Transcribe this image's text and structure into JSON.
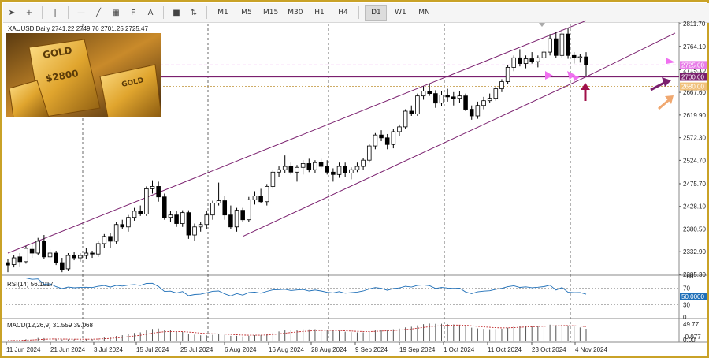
{
  "toolbar": {
    "tools": [
      {
        "name": "cursor-icon",
        "glyph": "➤"
      },
      {
        "name": "crosshair-icon",
        "glyph": "+"
      },
      {
        "name": "vertical-line-icon",
        "glyph": "|"
      },
      {
        "name": "horizontal-line-icon",
        "glyph": "—"
      },
      {
        "name": "trendline-icon",
        "glyph": "╱"
      },
      {
        "name": "channel-icon",
        "glyph": "▦"
      },
      {
        "name": "fibonacci-icon",
        "glyph": "F"
      },
      {
        "name": "text-icon",
        "glyph": "A"
      },
      {
        "name": "rectangle-icon",
        "glyph": "■"
      },
      {
        "name": "arrows-icon",
        "glyph": "⇅"
      }
    ],
    "timeframes": [
      {
        "label": "M1",
        "active": false
      },
      {
        "label": "M5",
        "active": false
      },
      {
        "label": "M15",
        "active": false
      },
      {
        "label": "M30",
        "active": false
      },
      {
        "label": "H1",
        "active": false
      },
      {
        "label": "H4",
        "active": false
      },
      {
        "label": "D1",
        "active": true
      },
      {
        "label": "W1",
        "active": false
      },
      {
        "label": "MN",
        "active": false
      }
    ]
  },
  "chart_data": {
    "type": "candlestick",
    "symbol_header": "XAUUSD,Daily  2741.22 2749.76 2701.25 2725.47",
    "price_axis": {
      "range": [
        2285.3,
        2811.7
      ],
      "ticks": [
        "2811.70",
        "2764.10",
        "2715.10",
        "2667.60",
        "2619.90",
        "2572.30",
        "2524.70",
        "2475.70",
        "2428.10",
        "2380.50",
        "2332.90",
        "2285.30"
      ]
    },
    "date_axis": [
      "11 Jun 2024",
      "21 Jun 2024",
      "3 Jul 2024",
      "15 Jul 2024",
      "25 Jul 2024",
      "6 Aug 2024",
      "16 Aug 2024",
      "28 Aug 2024",
      "9 Sep 2024",
      "19 Sep 2024",
      "1 Oct 2024",
      "11 Oct 2024",
      "23 Oct 2024",
      "4 Nov 2024"
    ],
    "price_labels": [
      {
        "text": "2725.00",
        "value": 2725.0,
        "bg": "#e87de8"
      },
      {
        "text": "2700.00",
        "value": 2700.0,
        "bg": "#7a1f6e"
      },
      {
        "text": "2680.00",
        "value": 2680.0,
        "bg": "#f0c07a"
      }
    ],
    "level_lines": [
      2725.0,
      2700.0,
      2680.0
    ],
    "channel": {
      "upper": [
        [
          "11 Jun 2024",
          2330
        ],
        [
          "4 Nov 2024",
          2818
        ]
      ],
      "lower": [
        [
          "6 Aug 2024",
          2365
        ],
        [
          "4 Nov 2024",
          2700
        ]
      ],
      "far": [
        [
          "4 Nov 2024",
          2700
        ],
        [
          "8 Nov 2024",
          2780
        ]
      ]
    },
    "ohlc": [
      [
        2310,
        2318,
        2290,
        2305
      ],
      [
        2306,
        2325,
        2300,
        2320
      ],
      [
        2322,
        2330,
        2302,
        2312
      ],
      [
        2312,
        2345,
        2308,
        2340
      ],
      [
        2338,
        2348,
        2320,
        2330
      ],
      [
        2330,
        2362,
        2325,
        2355
      ],
      [
        2355,
        2368,
        2318,
        2322
      ],
      [
        2322,
        2338,
        2312,
        2330
      ],
      [
        2330,
        2335,
        2305,
        2310
      ],
      [
        2310,
        2320,
        2290,
        2295
      ],
      [
        2297,
        2330,
        2292,
        2325
      ],
      [
        2325,
        2332,
        2315,
        2320
      ],
      [
        2320,
        2330,
        2312,
        2325
      ],
      [
        2325,
        2340,
        2318,
        2330
      ],
      [
        2330,
        2335,
        2320,
        2328
      ],
      [
        2328,
        2355,
        2322,
        2350
      ],
      [
        2350,
        2370,
        2340,
        2365
      ],
      [
        2365,
        2372,
        2340,
        2355
      ],
      [
        2355,
        2395,
        2350,
        2390
      ],
      [
        2390,
        2400,
        2380,
        2385
      ],
      [
        2385,
        2410,
        2375,
        2405
      ],
      [
        2405,
        2425,
        2398,
        2418
      ],
      [
        2418,
        2430,
        2408,
        2412
      ],
      [
        2412,
        2470,
        2408,
        2465
      ],
      [
        2465,
        2483,
        2455,
        2470
      ],
      [
        2470,
        2480,
        2438,
        2448
      ],
      [
        2448,
        2455,
        2400,
        2405
      ],
      [
        2405,
        2418,
        2395,
        2410
      ],
      [
        2410,
        2418,
        2385,
        2392
      ],
      [
        2392,
        2420,
        2385,
        2415
      ],
      [
        2415,
        2420,
        2360,
        2368
      ],
      [
        2368,
        2392,
        2355,
        2385
      ],
      [
        2385,
        2395,
        2375,
        2390
      ],
      [
        2390,
        2418,
        2380,
        2410
      ],
      [
        2410,
        2440,
        2400,
        2435
      ],
      [
        2435,
        2478,
        2430,
        2440
      ],
      [
        2440,
        2450,
        2400,
        2410
      ],
      [
        2410,
        2430,
        2380,
        2385
      ],
      [
        2385,
        2425,
        2375,
        2420
      ],
      [
        2420,
        2425,
        2395,
        2400
      ],
      [
        2400,
        2448,
        2395,
        2442
      ],
      [
        2442,
        2460,
        2432,
        2450
      ],
      [
        2450,
        2465,
        2435,
        2438
      ],
      [
        2438,
        2475,
        2430,
        2470
      ],
      [
        2470,
        2505,
        2465,
        2500
      ],
      [
        2500,
        2512,
        2490,
        2505
      ],
      [
        2505,
        2535,
        2498,
        2512
      ],
      [
        2512,
        2520,
        2495,
        2500
      ],
      [
        2500,
        2515,
        2480,
        2510
      ],
      [
        2510,
        2525,
        2495,
        2518
      ],
      [
        2518,
        2528,
        2500,
        2505
      ],
      [
        2505,
        2525,
        2498,
        2520
      ],
      [
        2520,
        2528,
        2508,
        2512
      ],
      [
        2512,
        2525,
        2495,
        2500
      ],
      [
        2500,
        2508,
        2480,
        2495
      ],
      [
        2495,
        2520,
        2488,
        2512
      ],
      [
        2512,
        2520,
        2490,
        2498
      ],
      [
        2498,
        2510,
        2485,
        2505
      ],
      [
        2505,
        2520,
        2500,
        2512
      ],
      [
        2512,
        2530,
        2505,
        2525
      ],
      [
        2525,
        2560,
        2520,
        2555
      ],
      [
        2555,
        2582,
        2548,
        2578
      ],
      [
        2578,
        2588,
        2565,
        2572
      ],
      [
        2572,
        2580,
        2548,
        2558
      ],
      [
        2558,
        2590,
        2550,
        2585
      ],
      [
        2585,
        2600,
        2575,
        2595
      ],
      [
        2595,
        2632,
        2590,
        2628
      ],
      [
        2628,
        2640,
        2618,
        2622
      ],
      [
        2622,
        2665,
        2618,
        2660
      ],
      [
        2660,
        2680,
        2652,
        2670
      ],
      [
        2670,
        2685,
        2660,
        2665
      ],
      [
        2665,
        2672,
        2635,
        2645
      ],
      [
        2645,
        2670,
        2638,
        2662
      ],
      [
        2662,
        2675,
        2648,
        2658
      ],
      [
        2658,
        2668,
        2640,
        2655
      ],
      [
        2655,
        2670,
        2645,
        2660
      ],
      [
        2660,
        2665,
        2628,
        2632
      ],
      [
        2632,
        2640,
        2610,
        2618
      ],
      [
        2618,
        2648,
        2612,
        2640
      ],
      [
        2640,
        2658,
        2632,
        2650
      ],
      [
        2650,
        2665,
        2645,
        2655
      ],
      [
        2655,
        2680,
        2650,
        2675
      ],
      [
        2675,
        2695,
        2668,
        2690
      ],
      [
        2690,
        2725,
        2685,
        2720
      ],
      [
        2720,
        2745,
        2712,
        2740
      ],
      [
        2740,
        2758,
        2722,
        2728
      ],
      [
        2728,
        2745,
        2718,
        2738
      ],
      [
        2738,
        2752,
        2728,
        2732
      ],
      [
        2732,
        2745,
        2720,
        2740
      ],
      [
        2740,
        2758,
        2735,
        2752
      ],
      [
        2752,
        2790,
        2745,
        2780
      ],
      [
        2780,
        2795,
        2740,
        2745
      ],
      [
        2745,
        2800,
        2740,
        2790
      ],
      [
        2790,
        2802,
        2738,
        2745
      ],
      [
        2745,
        2752,
        2728,
        2740
      ],
      [
        2740,
        2748,
        2730,
        2742
      ],
      [
        2742,
        2752,
        2702,
        2725
      ]
    ],
    "rsi": {
      "label": "RSI(14) 56.1017",
      "levels": [
        100,
        70,
        50,
        30,
        0
      ],
      "highlight": "50.0000",
      "value": 56.1017
    },
    "macd": {
      "label": "MACD(12,26,9) 31.559 39.068",
      "axis_top": "49.77",
      "axis_bottom": "0.00",
      "axis_mid": "-0.977",
      "main": 31.559,
      "signal": 39.068
    }
  }
}
